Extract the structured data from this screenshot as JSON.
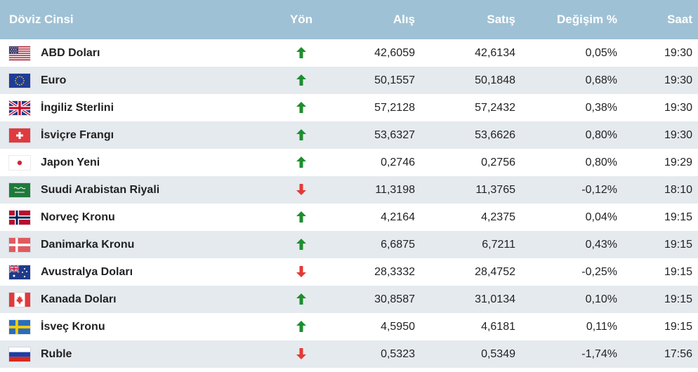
{
  "header": {
    "currency": "Döviz Cinsi",
    "direction": "Yön",
    "buy": "Alış",
    "sell": "Satış",
    "change": "Değişim %",
    "time": "Saat"
  },
  "colors": {
    "up": "#1e8e2e",
    "down": "#e53935",
    "header_bg": "#9fc1d5"
  },
  "rows": [
    {
      "flag": "us-flag-icon",
      "name": "ABD Doları",
      "dir": "up",
      "buy": "42,6059",
      "sell": "42,6134",
      "change": "0,05%",
      "time": "19:30"
    },
    {
      "flag": "eu-flag-icon",
      "name": "Euro",
      "dir": "up",
      "buy": "50,1557",
      "sell": "50,1848",
      "change": "0,68%",
      "time": "19:30"
    },
    {
      "flag": "gb-flag-icon",
      "name": "İngiliz Sterlini",
      "dir": "up",
      "buy": "57,2128",
      "sell": "57,2432",
      "change": "0,38%",
      "time": "19:30"
    },
    {
      "flag": "ch-flag-icon",
      "name": "İsviçre Frangı",
      "dir": "up",
      "buy": "53,6327",
      "sell": "53,6626",
      "change": "0,80%",
      "time": "19:30"
    },
    {
      "flag": "jp-flag-icon",
      "name": "Japon Yeni",
      "dir": "up",
      "buy": "0,2746",
      "sell": "0,2756",
      "change": "0,80%",
      "time": "19:29"
    },
    {
      "flag": "sa-flag-icon",
      "name": "Suudi Arabistan Riyali",
      "dir": "down",
      "buy": "11,3198",
      "sell": "11,3765",
      "change": "-0,12%",
      "time": "18:10"
    },
    {
      "flag": "no-flag-icon",
      "name": "Norveç Kronu",
      "dir": "up",
      "buy": "4,2164",
      "sell": "4,2375",
      "change": "0,04%",
      "time": "19:15"
    },
    {
      "flag": "dk-flag-icon",
      "name": "Danimarka Kronu",
      "dir": "up",
      "buy": "6,6875",
      "sell": "6,7211",
      "change": "0,43%",
      "time": "19:15"
    },
    {
      "flag": "au-flag-icon",
      "name": "Avustralya Doları",
      "dir": "down",
      "buy": "28,3332",
      "sell": "28,4752",
      "change": "-0,25%",
      "time": "19:15"
    },
    {
      "flag": "ca-flag-icon",
      "name": "Kanada Doları",
      "dir": "up",
      "buy": "30,8587",
      "sell": "31,0134",
      "change": "0,10%",
      "time": "19:15"
    },
    {
      "flag": "se-flag-icon",
      "name": "İsveç Kronu",
      "dir": "up",
      "buy": "4,5950",
      "sell": "4,6181",
      "change": "0,11%",
      "time": "19:15"
    },
    {
      "flag": "ru-flag-icon",
      "name": "Ruble",
      "dir": "down",
      "buy": "0,5323",
      "sell": "0,5349",
      "change": "-1,74%",
      "time": "17:56"
    }
  ]
}
